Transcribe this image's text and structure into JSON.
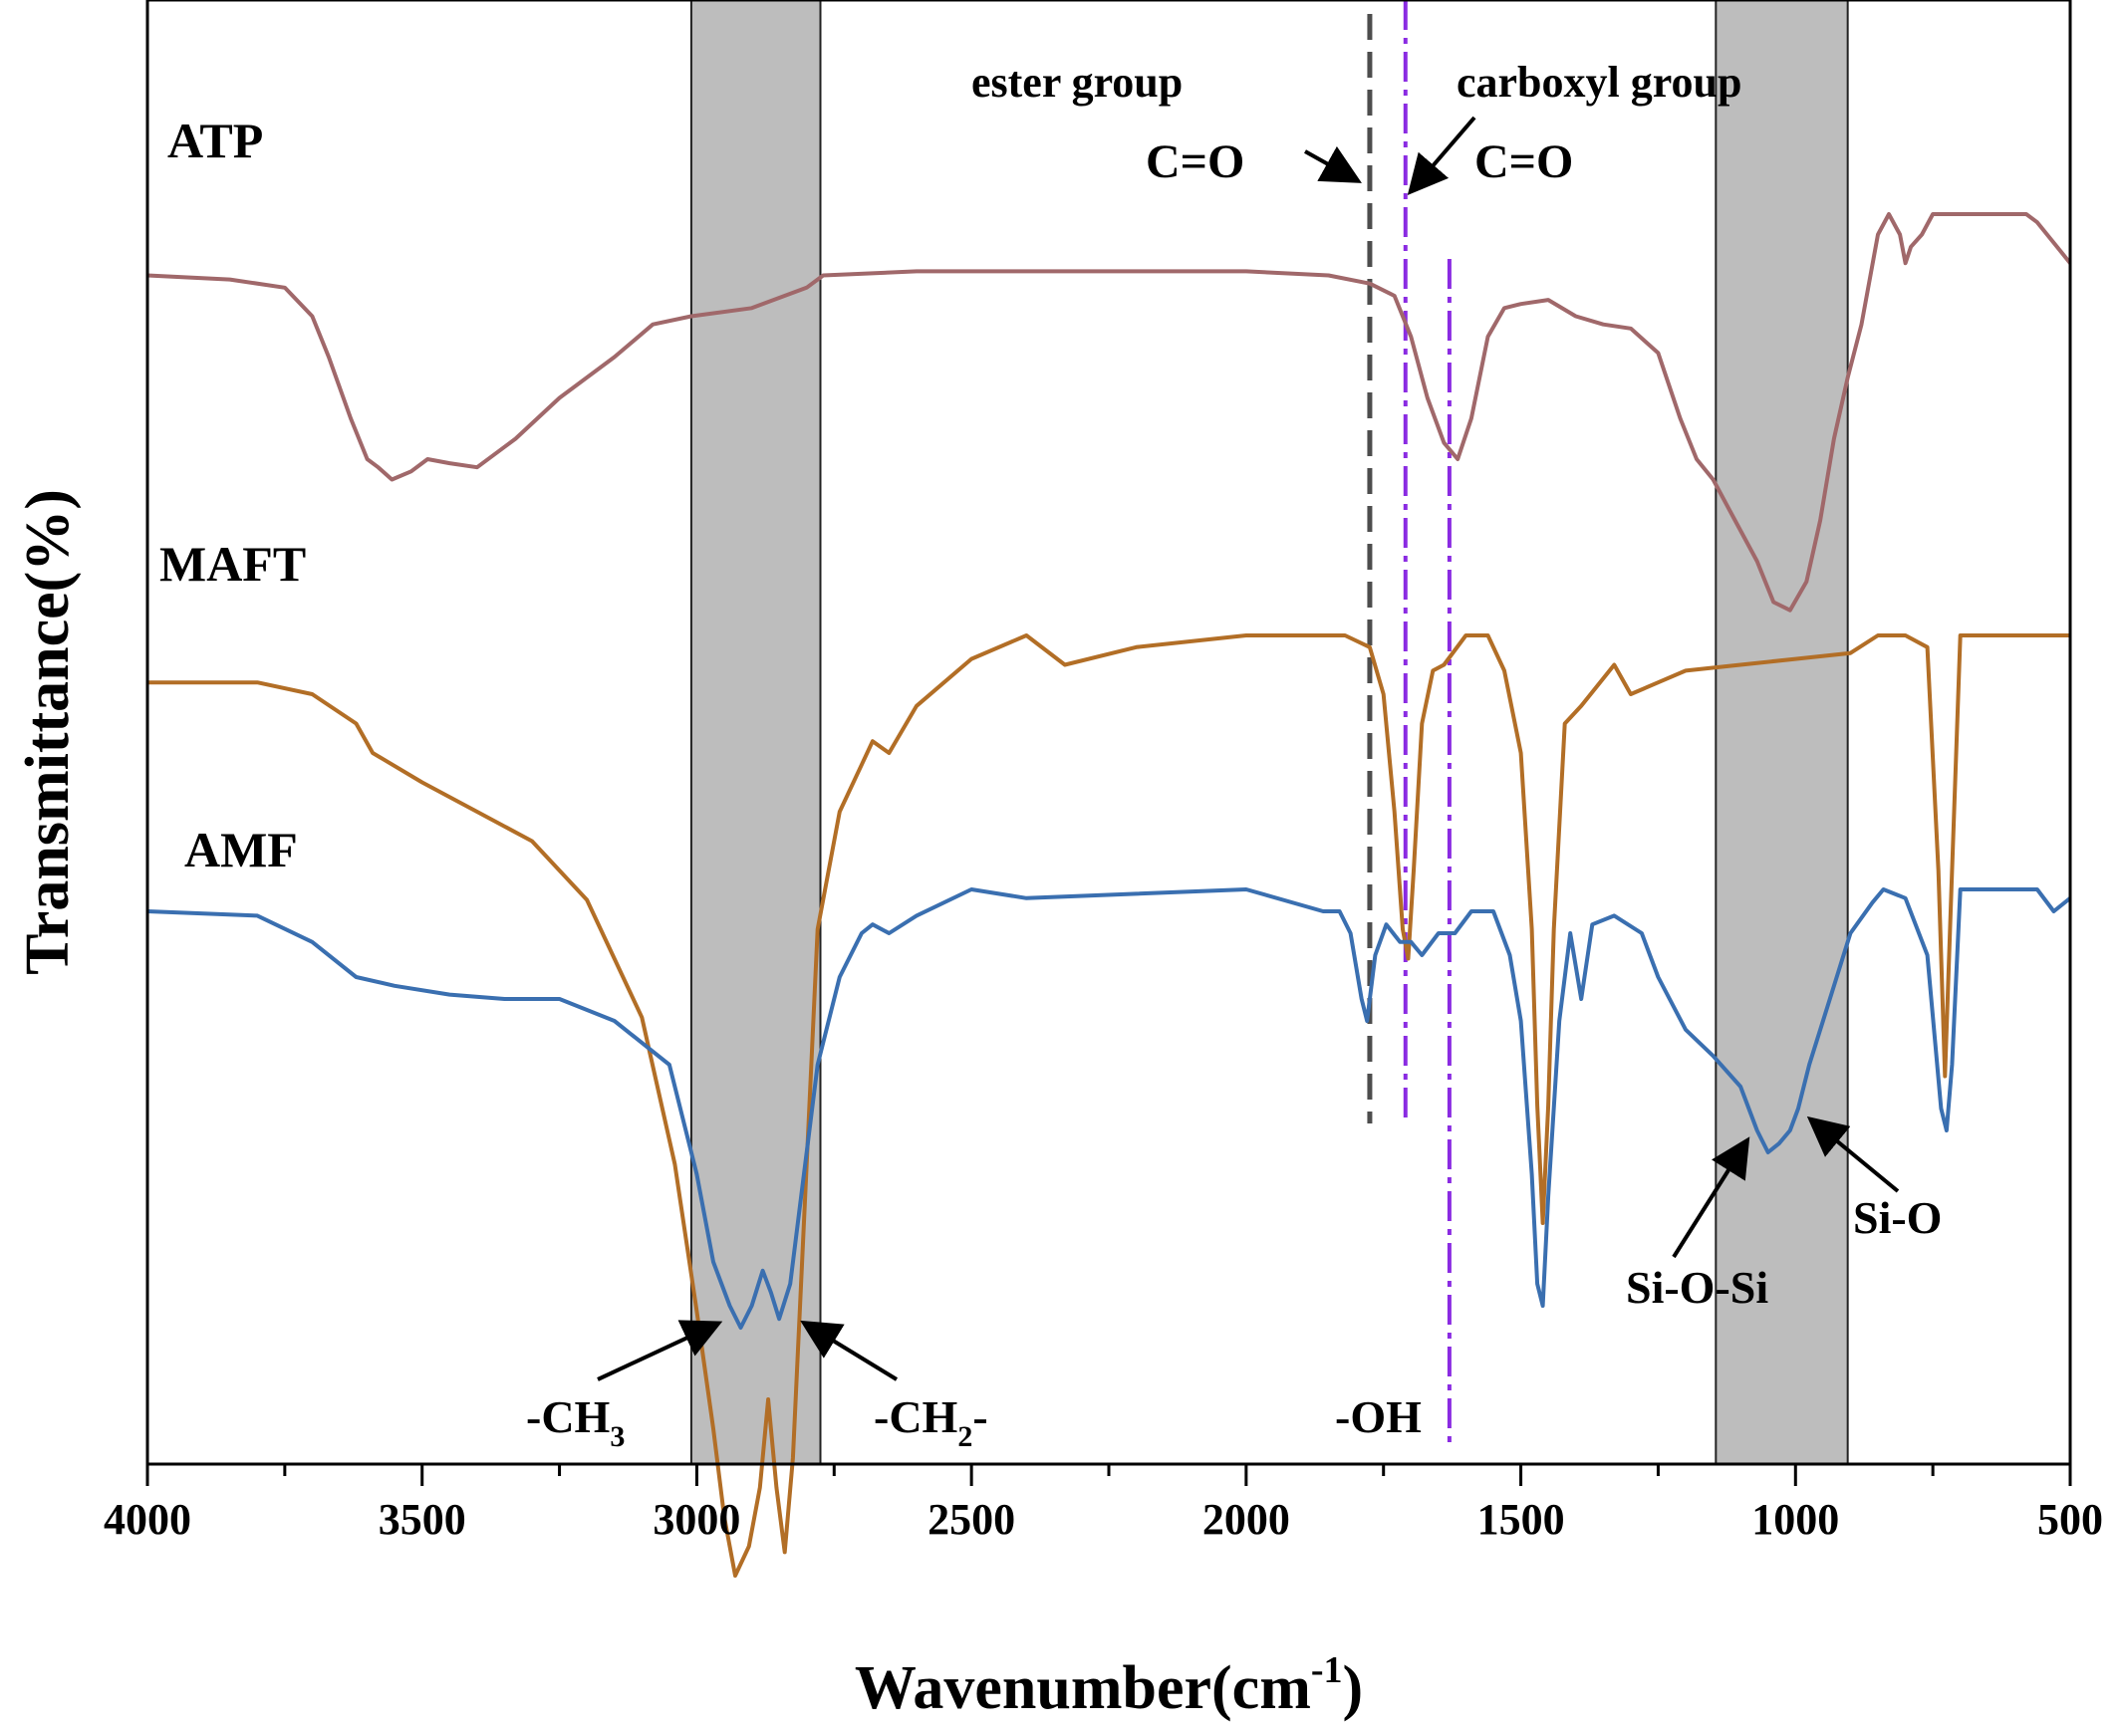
{
  "chart_data": {
    "type": "line",
    "xlabel": "Wavenumber(cm",
    "xlabel_sup": "-1",
    "xlabel_close": ")",
    "ylabel": "Transmittance(%)",
    "xlim": [
      4000,
      500
    ],
    "x_reversed": true,
    "y_ticks_shown": false,
    "grid": false,
    "x_ticks": [
      4000,
      3500,
      3000,
      2500,
      2000,
      1500,
      1000,
      500
    ],
    "x_minor_step": 250,
    "shaded_regions": [
      {
        "x": [
          3010,
          2775
        ],
        "color": "#bdbdbd"
      },
      {
        "x": [
          1145,
          905
        ],
        "color": "#bdbdbd"
      }
    ],
    "reference_lines": [
      {
        "x": 1775,
        "style": "dashed",
        "color": "#4d4d4d"
      },
      {
        "x": 1710,
        "style": "dashdot",
        "color": "#8a2be2"
      },
      {
        "x": 1630,
        "style": "dashdot",
        "color": "#8a2be2"
      }
    ],
    "series": [
      {
        "name": "ATP",
        "color": "#a0686a",
        "points": [
          [
            4000,
            0.15
          ],
          [
            3850,
            0.16
          ],
          [
            3750,
            0.18
          ],
          [
            3700,
            0.25
          ],
          [
            3670,
            0.35
          ],
          [
            3630,
            0.5
          ],
          [
            3600,
            0.6
          ],
          [
            3580,
            0.62
          ],
          [
            3555,
            0.65
          ],
          [
            3520,
            0.63
          ],
          [
            3490,
            0.6
          ],
          [
            3450,
            0.61
          ],
          [
            3400,
            0.62
          ],
          [
            3330,
            0.55
          ],
          [
            3250,
            0.45
          ],
          [
            3150,
            0.35
          ],
          [
            3080,
            0.27
          ],
          [
            3010,
            0.25
          ],
          [
            2900,
            0.23
          ],
          [
            2800,
            0.18
          ],
          [
            2770,
            0.15
          ],
          [
            2600,
            0.14
          ],
          [
            2400,
            0.14
          ],
          [
            2200,
            0.14
          ],
          [
            2000,
            0.14
          ],
          [
            1850,
            0.15
          ],
          [
            1775,
            0.17
          ],
          [
            1730,
            0.2
          ],
          [
            1700,
            0.3
          ],
          [
            1670,
            0.45
          ],
          [
            1640,
            0.56
          ],
          [
            1615,
            0.6
          ],
          [
            1590,
            0.5
          ],
          [
            1560,
            0.3
          ],
          [
            1530,
            0.23
          ],
          [
            1500,
            0.22
          ],
          [
            1450,
            0.21
          ],
          [
            1400,
            0.25
          ],
          [
            1350,
            0.27
          ],
          [
            1300,
            0.28
          ],
          [
            1250,
            0.34
          ],
          [
            1210,
            0.5
          ],
          [
            1180,
            0.6
          ],
          [
            1150,
            0.65
          ],
          [
            1110,
            0.75
          ],
          [
            1070,
            0.85
          ],
          [
            1040,
            0.95
          ],
          [
            1010,
            0.97
          ],
          [
            980,
            0.9
          ],
          [
            955,
            0.75
          ],
          [
            930,
            0.55
          ],
          [
            905,
            0.4
          ],
          [
            880,
            0.27
          ],
          [
            850,
            0.05
          ],
          [
            830,
            0.0
          ],
          [
            810,
            0.05
          ],
          [
            800,
            0.12
          ],
          [
            790,
            0.08
          ],
          [
            770,
            0.05
          ],
          [
            750,
            0.0
          ],
          [
            650,
            0.0
          ],
          [
            580,
            0.0
          ],
          [
            560,
            0.02
          ],
          [
            530,
            0.07
          ],
          [
            500,
            0.12
          ]
        ]
      },
      {
        "name": "MAFT",
        "color": "#b26e26",
        "points": [
          [
            4000,
            0.08
          ],
          [
            3800,
            0.08
          ],
          [
            3700,
            0.1
          ],
          [
            3620,
            0.15
          ],
          [
            3590,
            0.2
          ],
          [
            3500,
            0.25
          ],
          [
            3400,
            0.3
          ],
          [
            3300,
            0.35
          ],
          [
            3200,
            0.45
          ],
          [
            3100,
            0.65
          ],
          [
            3040,
            0.9
          ],
          [
            3000,
            1.15
          ],
          [
            2970,
            1.35
          ],
          [
            2950,
            1.5
          ],
          [
            2930,
            1.6
          ],
          [
            2905,
            1.55
          ],
          [
            2885,
            1.45
          ],
          [
            2870,
            1.3
          ],
          [
            2855,
            1.45
          ],
          [
            2840,
            1.56
          ],
          [
            2825,
            1.4
          ],
          [
            2800,
            0.9
          ],
          [
            2780,
            0.5
          ],
          [
            2740,
            0.3
          ],
          [
            2700,
            0.22
          ],
          [
            2680,
            0.18
          ],
          [
            2650,
            0.2
          ],
          [
            2600,
            0.12
          ],
          [
            2500,
            0.04
          ],
          [
            2400,
            0.0
          ],
          [
            2330,
            0.05
          ],
          [
            2200,
            0.02
          ],
          [
            2000,
            0.0
          ],
          [
            1820,
            0.0
          ],
          [
            1775,
            0.02
          ],
          [
            1750,
            0.1
          ],
          [
            1730,
            0.3
          ],
          [
            1715,
            0.5
          ],
          [
            1705,
            0.55
          ],
          [
            1695,
            0.4
          ],
          [
            1680,
            0.15
          ],
          [
            1660,
            0.06
          ],
          [
            1640,
            0.05
          ],
          [
            1600,
            0.0
          ],
          [
            1560,
            0.0
          ],
          [
            1530,
            0.06
          ],
          [
            1500,
            0.2
          ],
          [
            1480,
            0.5
          ],
          [
            1470,
            0.8
          ],
          [
            1460,
            1.0
          ],
          [
            1450,
            0.8
          ],
          [
            1440,
            0.5
          ],
          [
            1420,
            0.15
          ],
          [
            1390,
            0.12
          ],
          [
            1330,
            0.05
          ],
          [
            1300,
            0.1
          ],
          [
            1250,
            0.08
          ],
          [
            1200,
            0.06
          ],
          [
            1100,
            0.05
          ],
          [
            1000,
            0.04
          ],
          [
            900,
            0.03
          ],
          [
            850,
            0.0
          ],
          [
            800,
            0.0
          ],
          [
            760,
            0.02
          ],
          [
            740,
            0.4
          ],
          [
            728,
            0.75
          ],
          [
            715,
            0.4
          ],
          [
            700,
            0.0
          ],
          [
            600,
            0.0
          ],
          [
            500,
            0.0
          ]
        ]
      },
      {
        "name": "AMF",
        "color": "#3a6fb0",
        "points": [
          [
            4000,
            0.05
          ],
          [
            3800,
            0.06
          ],
          [
            3700,
            0.12
          ],
          [
            3620,
            0.2
          ],
          [
            3550,
            0.22
          ],
          [
            3450,
            0.24
          ],
          [
            3350,
            0.25
          ],
          [
            3250,
            0.25
          ],
          [
            3150,
            0.3
          ],
          [
            3050,
            0.4
          ],
          [
            3000,
            0.65
          ],
          [
            2970,
            0.85
          ],
          [
            2940,
            0.95
          ],
          [
            2920,
            1.0
          ],
          [
            2900,
            0.95
          ],
          [
            2880,
            0.87
          ],
          [
            2865,
            0.92
          ],
          [
            2850,
            0.98
          ],
          [
            2830,
            0.9
          ],
          [
            2800,
            0.6
          ],
          [
            2780,
            0.4
          ],
          [
            2740,
            0.2
          ],
          [
            2700,
            0.1
          ],
          [
            2680,
            0.08
          ],
          [
            2650,
            0.1
          ],
          [
            2600,
            0.06
          ],
          [
            2500,
            0.0
          ],
          [
            2400,
            0.02
          ],
          [
            2200,
            0.01
          ],
          [
            2000,
            0.0
          ],
          [
            1860,
            0.05
          ],
          [
            1830,
            0.05
          ],
          [
            1810,
            0.1
          ],
          [
            1790,
            0.25
          ],
          [
            1780,
            0.3
          ],
          [
            1765,
            0.15
          ],
          [
            1745,
            0.08
          ],
          [
            1720,
            0.12
          ],
          [
            1700,
            0.12
          ],
          [
            1680,
            0.15
          ],
          [
            1650,
            0.1
          ],
          [
            1620,
            0.1
          ],
          [
            1590,
            0.05
          ],
          [
            1550,
            0.05
          ],
          [
            1520,
            0.15
          ],
          [
            1500,
            0.3
          ],
          [
            1480,
            0.65
          ],
          [
            1470,
            0.9
          ],
          [
            1460,
            0.95
          ],
          [
            1450,
            0.7
          ],
          [
            1430,
            0.3
          ],
          [
            1410,
            0.1
          ],
          [
            1390,
            0.25
          ],
          [
            1370,
            0.08
          ],
          [
            1330,
            0.06
          ],
          [
            1280,
            0.1
          ],
          [
            1250,
            0.2
          ],
          [
            1200,
            0.32
          ],
          [
            1150,
            0.38
          ],
          [
            1100,
            0.45
          ],
          [
            1070,
            0.55
          ],
          [
            1050,
            0.6
          ],
          [
            1030,
            0.58
          ],
          [
            1010,
            0.55
          ],
          [
            995,
            0.5
          ],
          [
            975,
            0.4
          ],
          [
            950,
            0.3
          ],
          [
            930,
            0.22
          ],
          [
            900,
            0.1
          ],
          [
            860,
            0.03
          ],
          [
            840,
            0.0
          ],
          [
            800,
            0.02
          ],
          [
            760,
            0.15
          ],
          [
            735,
            0.5
          ],
          [
            725,
            0.55
          ],
          [
            715,
            0.4
          ],
          [
            700,
            0.0
          ],
          [
            600,
            0.0
          ],
          [
            560,
            0.0
          ],
          [
            530,
            0.05
          ],
          [
            500,
            0.02
          ]
        ]
      }
    ],
    "series_labels": [
      "ATP",
      "MAFT",
      "AMF"
    ],
    "annotations": {
      "ester_group": "ester group",
      "carboxyl_group": "carboxyl group",
      "co_ester": "C=O",
      "co_carboxyl": "C=O",
      "ch3": "-CH",
      "ch3_sub": "3",
      "ch2": "-CH",
      "ch2_sub": "2",
      "ch2_tail": "-",
      "oh": "-OH",
      "siosi": "Si-O-Si",
      "sio": "Si-O"
    }
  }
}
